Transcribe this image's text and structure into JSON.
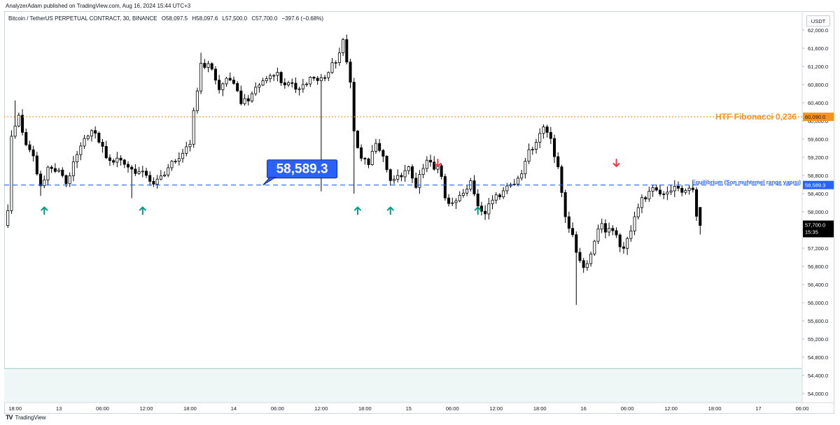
{
  "header": {
    "publisher": "AnalyzerAdam published on TradingView.com, Aug 16, 2024 15:44 UTC+3"
  },
  "symbol": {
    "name": "Bitcoin / TetherUS PERPETUAL CONTRACT, 30, BINANCE",
    "open": "O58,097.5",
    "high": "H58,097.6",
    "low": "L57,500.0",
    "close": "C57,700.0",
    "change": "−397.6 (−0.68%)"
  },
  "axis": {
    "currency": "USDT"
  },
  "footer": {
    "brand": "TradingView",
    "logo": "TV"
  },
  "colors": {
    "up": "#ffffff",
    "down": "#000000",
    "fib": "#f7931a",
    "equilibrium": "#2962ff",
    "arrow_up": "#089981",
    "arrow_down": "#f23645",
    "shade": "#eef6f6"
  },
  "chart_data": {
    "type": "candlestick",
    "title": "Bitcoin / TetherUS PERPETUAL CONTRACT, 30, BINANCE",
    "ylim": [
      53800,
      62200
    ],
    "yticks": [
      54000,
      54400,
      54800,
      55200,
      55600,
      56000,
      56400,
      56800,
      57200,
      57600,
      58000,
      58400,
      58800,
      59200,
      59600,
      60000,
      60400,
      60800,
      61200,
      61600,
      62000
    ],
    "ytick_labels": [
      "54,000.0",
      "54,400.0",
      "54,800.0",
      "55,200.0",
      "55,600.0",
      "56,000.0",
      "56,400.0",
      "56,800.0",
      "57,200.0",
      "57,600.0",
      "58,000.0",
      "58,400.0",
      "58,800.0",
      "59,200.0",
      "59,600.0",
      "60,000.0",
      "60,400.0",
      "60,800.0",
      "61,200.0",
      "61,600.0",
      "62,000.0"
    ],
    "xlim": [
      -1,
      218
    ],
    "xticks": [
      {
        "bar": 2,
        "label": "18:00"
      },
      {
        "bar": 14,
        "label": "13"
      },
      {
        "bar": 26,
        "label": "06:00"
      },
      {
        "bar": 38,
        "label": "12:00"
      },
      {
        "bar": 50,
        "label": "18:00"
      },
      {
        "bar": 62,
        "label": "14"
      },
      {
        "bar": 74,
        "label": "06:00"
      },
      {
        "bar": 86,
        "label": "12:00"
      },
      {
        "bar": 98,
        "label": "18:00"
      },
      {
        "bar": 110,
        "label": "15"
      },
      {
        "bar": 122,
        "label": "06:00"
      },
      {
        "bar": 134,
        "label": "12:00"
      },
      {
        "bar": 146,
        "label": "18:00"
      },
      {
        "bar": 158,
        "label": "16"
      },
      {
        "bar": 170,
        "label": "06:00"
      },
      {
        "bar": 182,
        "label": "12:00"
      },
      {
        "bar": 194,
        "label": "18:00"
      },
      {
        "bar": 206,
        "label": "17"
      },
      {
        "bar": 218,
        "label": "06:00"
      }
    ],
    "anchors": [
      {
        "bar": 0,
        "price": 58000
      },
      {
        "bar": 1,
        "price": 59700
      },
      {
        "bar": 3,
        "price": 60200
      },
      {
        "bar": 5,
        "price": 59500
      },
      {
        "bar": 7,
        "price": 59300
      },
      {
        "bar": 9,
        "price": 58500
      },
      {
        "bar": 11,
        "price": 58900
      },
      {
        "bar": 14,
        "price": 58800
      },
      {
        "bar": 16,
        "price": 58700
      },
      {
        "bar": 19,
        "price": 59300
      },
      {
        "bar": 22,
        "price": 59800
      },
      {
        "bar": 25,
        "price": 59500
      },
      {
        "bar": 28,
        "price": 59000
      },
      {
        "bar": 31,
        "price": 59200
      },
      {
        "bar": 34,
        "price": 59000
      },
      {
        "bar": 37,
        "price": 58900
      },
      {
        "bar": 40,
        "price": 58500
      },
      {
        "bar": 42,
        "price": 58700
      },
      {
        "bar": 45,
        "price": 59000
      },
      {
        "bar": 47,
        "price": 59300
      },
      {
        "bar": 50,
        "price": 59500
      },
      {
        "bar": 51,
        "price": 60300
      },
      {
        "bar": 53,
        "price": 61200
      },
      {
        "bar": 56,
        "price": 61100
      },
      {
        "bar": 58,
        "price": 60600
      },
      {
        "bar": 61,
        "price": 61000
      },
      {
        "bar": 64,
        "price": 60500
      },
      {
        "bar": 67,
        "price": 60600
      },
      {
        "bar": 70,
        "price": 60800
      },
      {
        "bar": 73,
        "price": 61000
      },
      {
        "bar": 76,
        "price": 60900
      },
      {
        "bar": 79,
        "price": 60800
      },
      {
        "bar": 82,
        "price": 60900
      },
      {
        "bar": 85,
        "price": 60800
      },
      {
        "bar": 88,
        "price": 61000
      },
      {
        "bar": 90,
        "price": 61400
      },
      {
        "bar": 92,
        "price": 61800
      },
      {
        "bar": 94,
        "price": 60900
      },
      {
        "bar": 95,
        "price": 59800
      },
      {
        "bar": 97,
        "price": 59200
      },
      {
        "bar": 99,
        "price": 59000
      },
      {
        "bar": 101,
        "price": 59500
      },
      {
        "bar": 103,
        "price": 59100
      },
      {
        "bar": 105,
        "price": 58700
      },
      {
        "bar": 108,
        "price": 58900
      },
      {
        "bar": 110,
        "price": 59000
      },
      {
        "bar": 112,
        "price": 58600
      },
      {
        "bar": 115,
        "price": 59000
      },
      {
        "bar": 118,
        "price": 58900
      },
      {
        "bar": 120,
        "price": 58400
      },
      {
        "bar": 122,
        "price": 58200
      },
      {
        "bar": 124,
        "price": 58400
      },
      {
        "bar": 127,
        "price": 58600
      },
      {
        "bar": 129,
        "price": 58100
      },
      {
        "bar": 131,
        "price": 57900
      },
      {
        "bar": 133,
        "price": 58200
      },
      {
        "bar": 136,
        "price": 58600
      },
      {
        "bar": 139,
        "price": 58700
      },
      {
        "bar": 142,
        "price": 59100
      },
      {
        "bar": 145,
        "price": 59500
      },
      {
        "bar": 147,
        "price": 59800
      },
      {
        "bar": 149,
        "price": 59600
      },
      {
        "bar": 151,
        "price": 59000
      },
      {
        "bar": 153,
        "price": 58000
      },
      {
        "bar": 155,
        "price": 57500
      },
      {
        "bar": 157,
        "price": 56900
      },
      {
        "bar": 158,
        "price": 56700
      },
      {
        "bar": 160,
        "price": 57000
      },
      {
        "bar": 162,
        "price": 57600
      },
      {
        "bar": 165,
        "price": 57700
      },
      {
        "bar": 167,
        "price": 57500
      },
      {
        "bar": 169,
        "price": 57200
      },
      {
        "bar": 171,
        "price": 57700
      },
      {
        "bar": 174,
        "price": 58200
      },
      {
        "bar": 177,
        "price": 58400
      },
      {
        "bar": 180,
        "price": 58500
      },
      {
        "bar": 183,
        "price": 58600
      },
      {
        "bar": 186,
        "price": 58500
      },
      {
        "bar": 188,
        "price": 58400
      },
      {
        "bar": 189,
        "price": 57800
      },
      {
        "bar": 190,
        "price": 57700
      }
    ],
    "special_lows": [
      {
        "bar": 9,
        "low": 58350
      },
      {
        "bar": 34,
        "low": 58300
      },
      {
        "bar": 86,
        "low": 58450
      },
      {
        "bar": 95,
        "low": 58400
      },
      {
        "bar": 156,
        "low": 55950
      },
      {
        "bar": 170,
        "low": 57050
      }
    ],
    "special_highs": [
      {
        "bar": 2,
        "high": 60450
      },
      {
        "bar": 53,
        "high": 61500
      },
      {
        "bar": 93,
        "high": 61900
      },
      {
        "bar": 149,
        "high": 59800
      }
    ],
    "last_bar": {
      "bar": 190,
      "open": 58097.5,
      "high": 58097.6,
      "low": 57500.0,
      "close": 57700.0
    },
    "annotations": {
      "fib_level": {
        "price": 60090,
        "label": "HTF Fibonacci 0,236",
        "price_label": "60,090.0"
      },
      "equilibrium": {
        "price": 58589.3,
        "label": "Equilibrium (Son muhtemel range yapısı)",
        "price_label": "58,589.3"
      },
      "callout": {
        "text": "58,589.3",
        "anchor_bar": 70
      },
      "last_price": {
        "label": "57,700.0",
        "countdown": "15:35"
      },
      "up_arrows": [
        10,
        37,
        96,
        105,
        129
      ],
      "down_arrows": [
        118,
        167
      ],
      "shaded_band": [
        53800,
        54550
      ]
    }
  }
}
